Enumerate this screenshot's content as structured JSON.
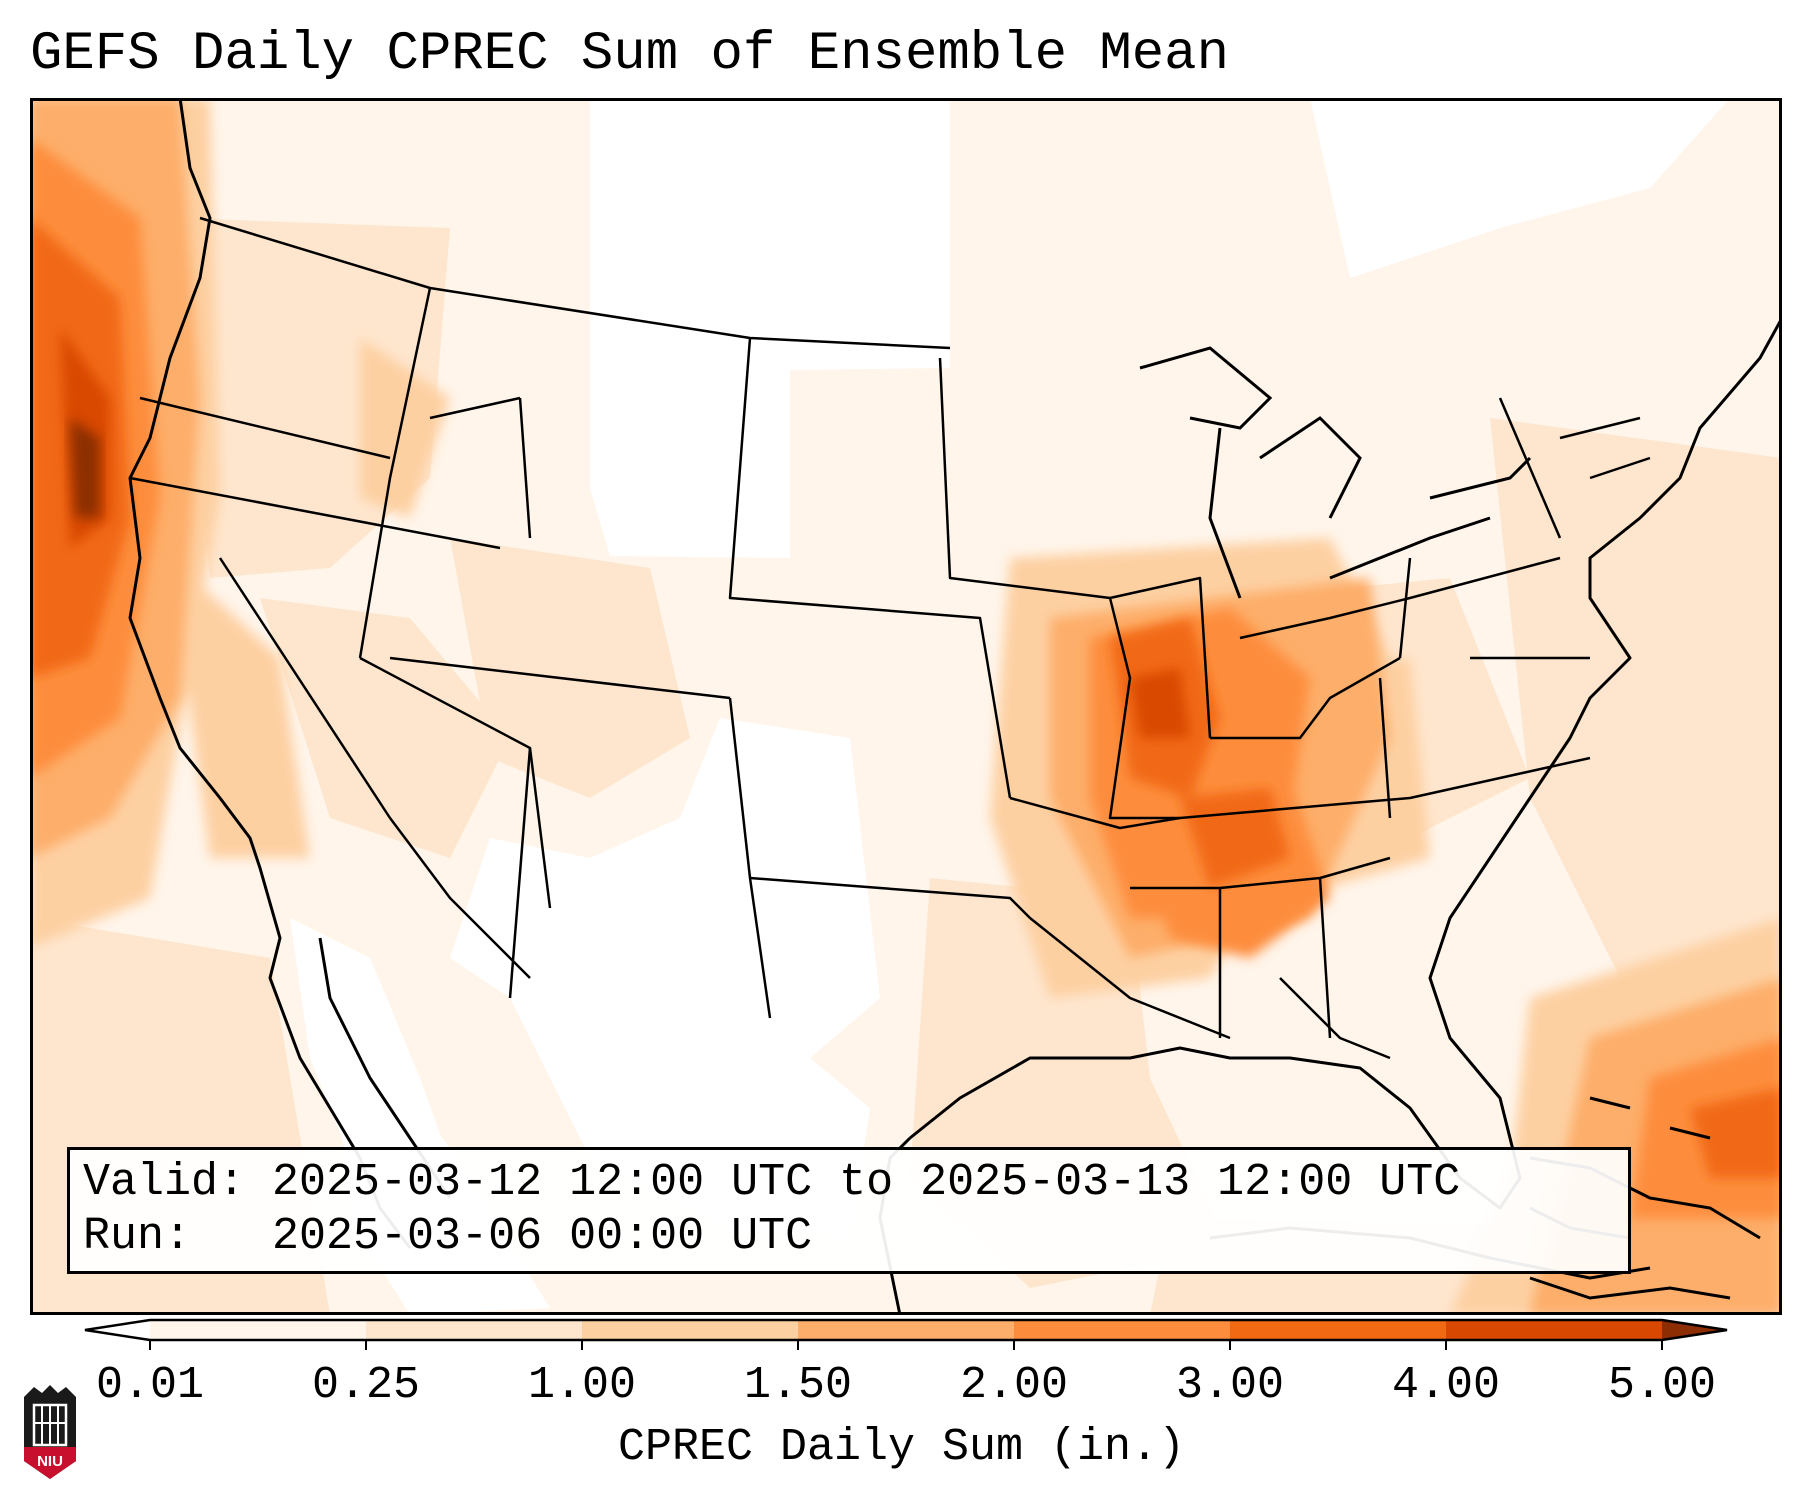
{
  "title": "GEFS Daily CPREC Sum of Ensemble Mean",
  "info": {
    "valid_line": "Valid: 2025-03-12 12:00 UTC to 2025-03-13 12:00 UTC",
    "run_line": "Run:   2025-03-06 00:00 UTC"
  },
  "colorbar": {
    "label": "CPREC Daily Sum (in.)",
    "ticks": [
      "0.01",
      "0.25",
      "1.00",
      "1.50",
      "2.00",
      "3.00",
      "4.00",
      "5.00"
    ],
    "colors": {
      "under": "#ffffff",
      "bins": [
        "#fff5eb",
        "#fee6ce",
        "#fdd0a2",
        "#fdae6b",
        "#fd8d3c",
        "#f16913",
        "#d94801"
      ],
      "over": "#8c2d04"
    },
    "extend": "both"
  },
  "map": {
    "region": "Contiguous United States",
    "field": "CPREC daily sum of ensemble mean",
    "heavy_areas": [
      "Pacific coast offshore",
      "Ohio-Tennessee Valley",
      "Caribbean / western Atlantic"
    ]
  },
  "logo": {
    "text": "NIU"
  }
}
